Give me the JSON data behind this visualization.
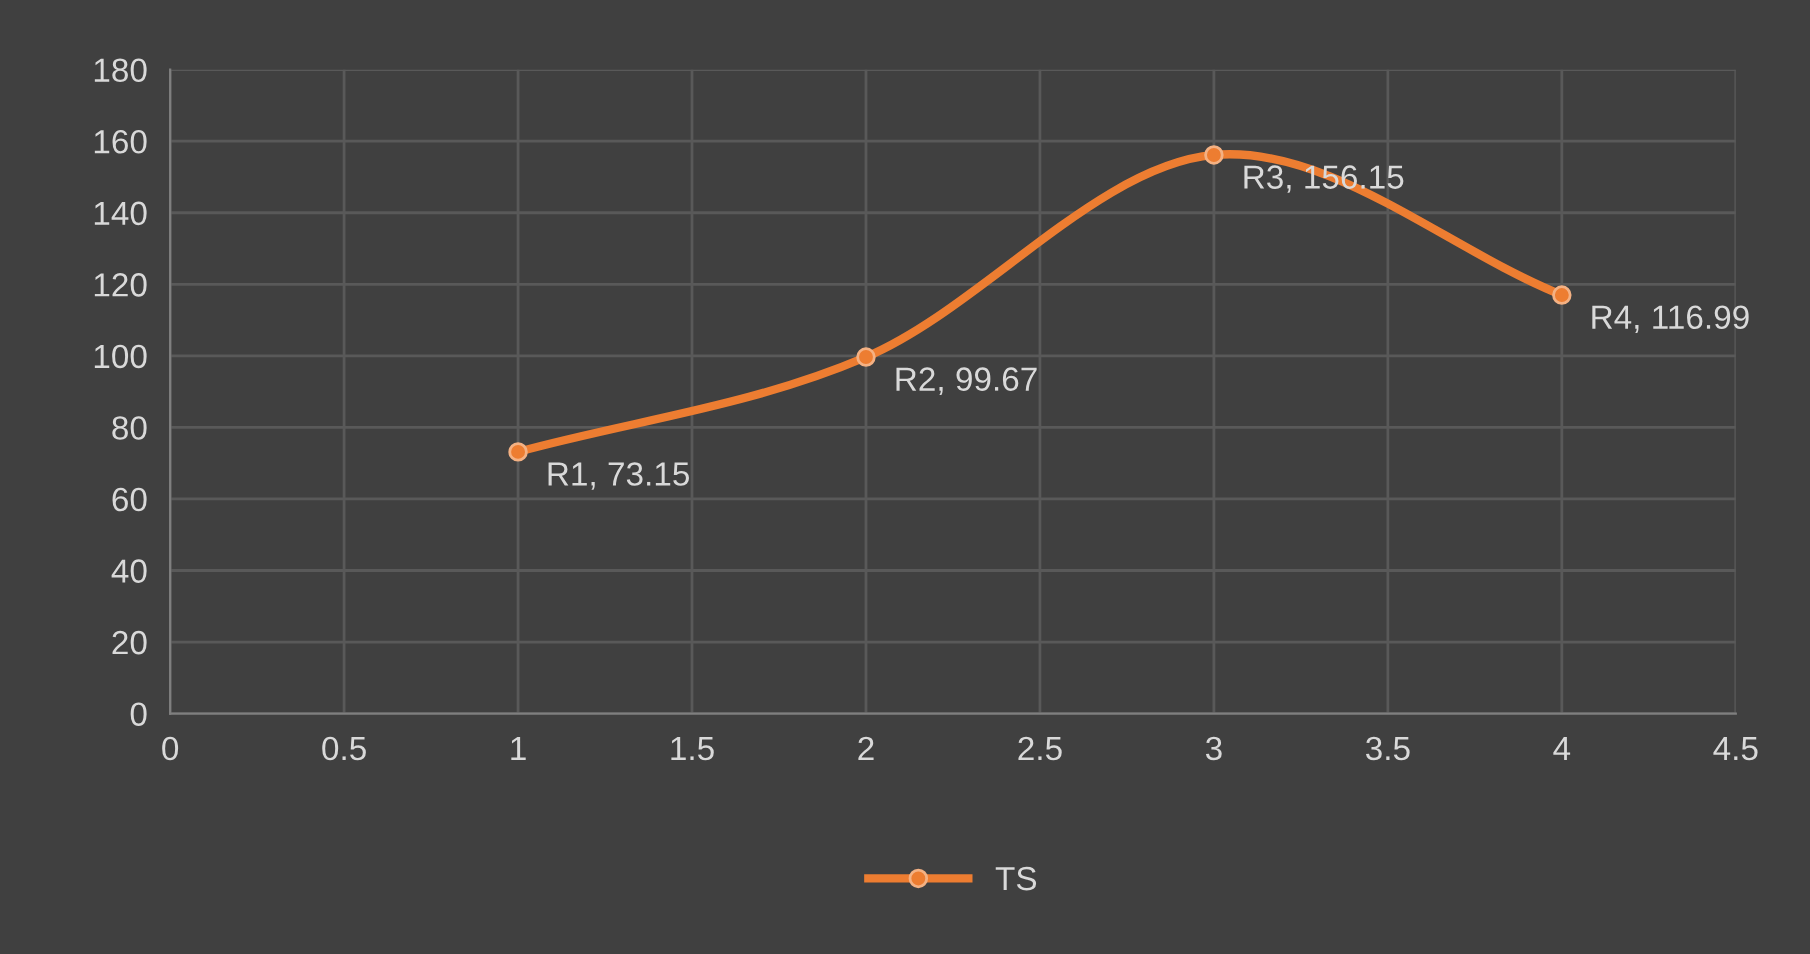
{
  "chart_data": {
    "type": "line",
    "x": [
      1,
      2,
      3,
      4
    ],
    "series": [
      {
        "name": "TS",
        "color": "#ed7d31",
        "values": [
          73.15,
          99.67,
          156.15,
          116.99
        ],
        "value_labels": [
          "R1, 73.15",
          "R2, 99.67",
          "R3, 156.15",
          "R4, 116.99"
        ]
      }
    ],
    "xlim": [
      0,
      4.5
    ],
    "xticks": [
      0,
      0.5,
      1,
      1.5,
      2,
      2.5,
      3,
      3.5,
      4,
      4.5
    ],
    "ylim": [
      0,
      180
    ],
    "yticks": [
      0,
      20,
      40,
      60,
      80,
      100,
      120,
      140,
      160,
      180
    ],
    "grid": true,
    "legend": "bottom",
    "marker": "circle",
    "line_style": "solid"
  }
}
